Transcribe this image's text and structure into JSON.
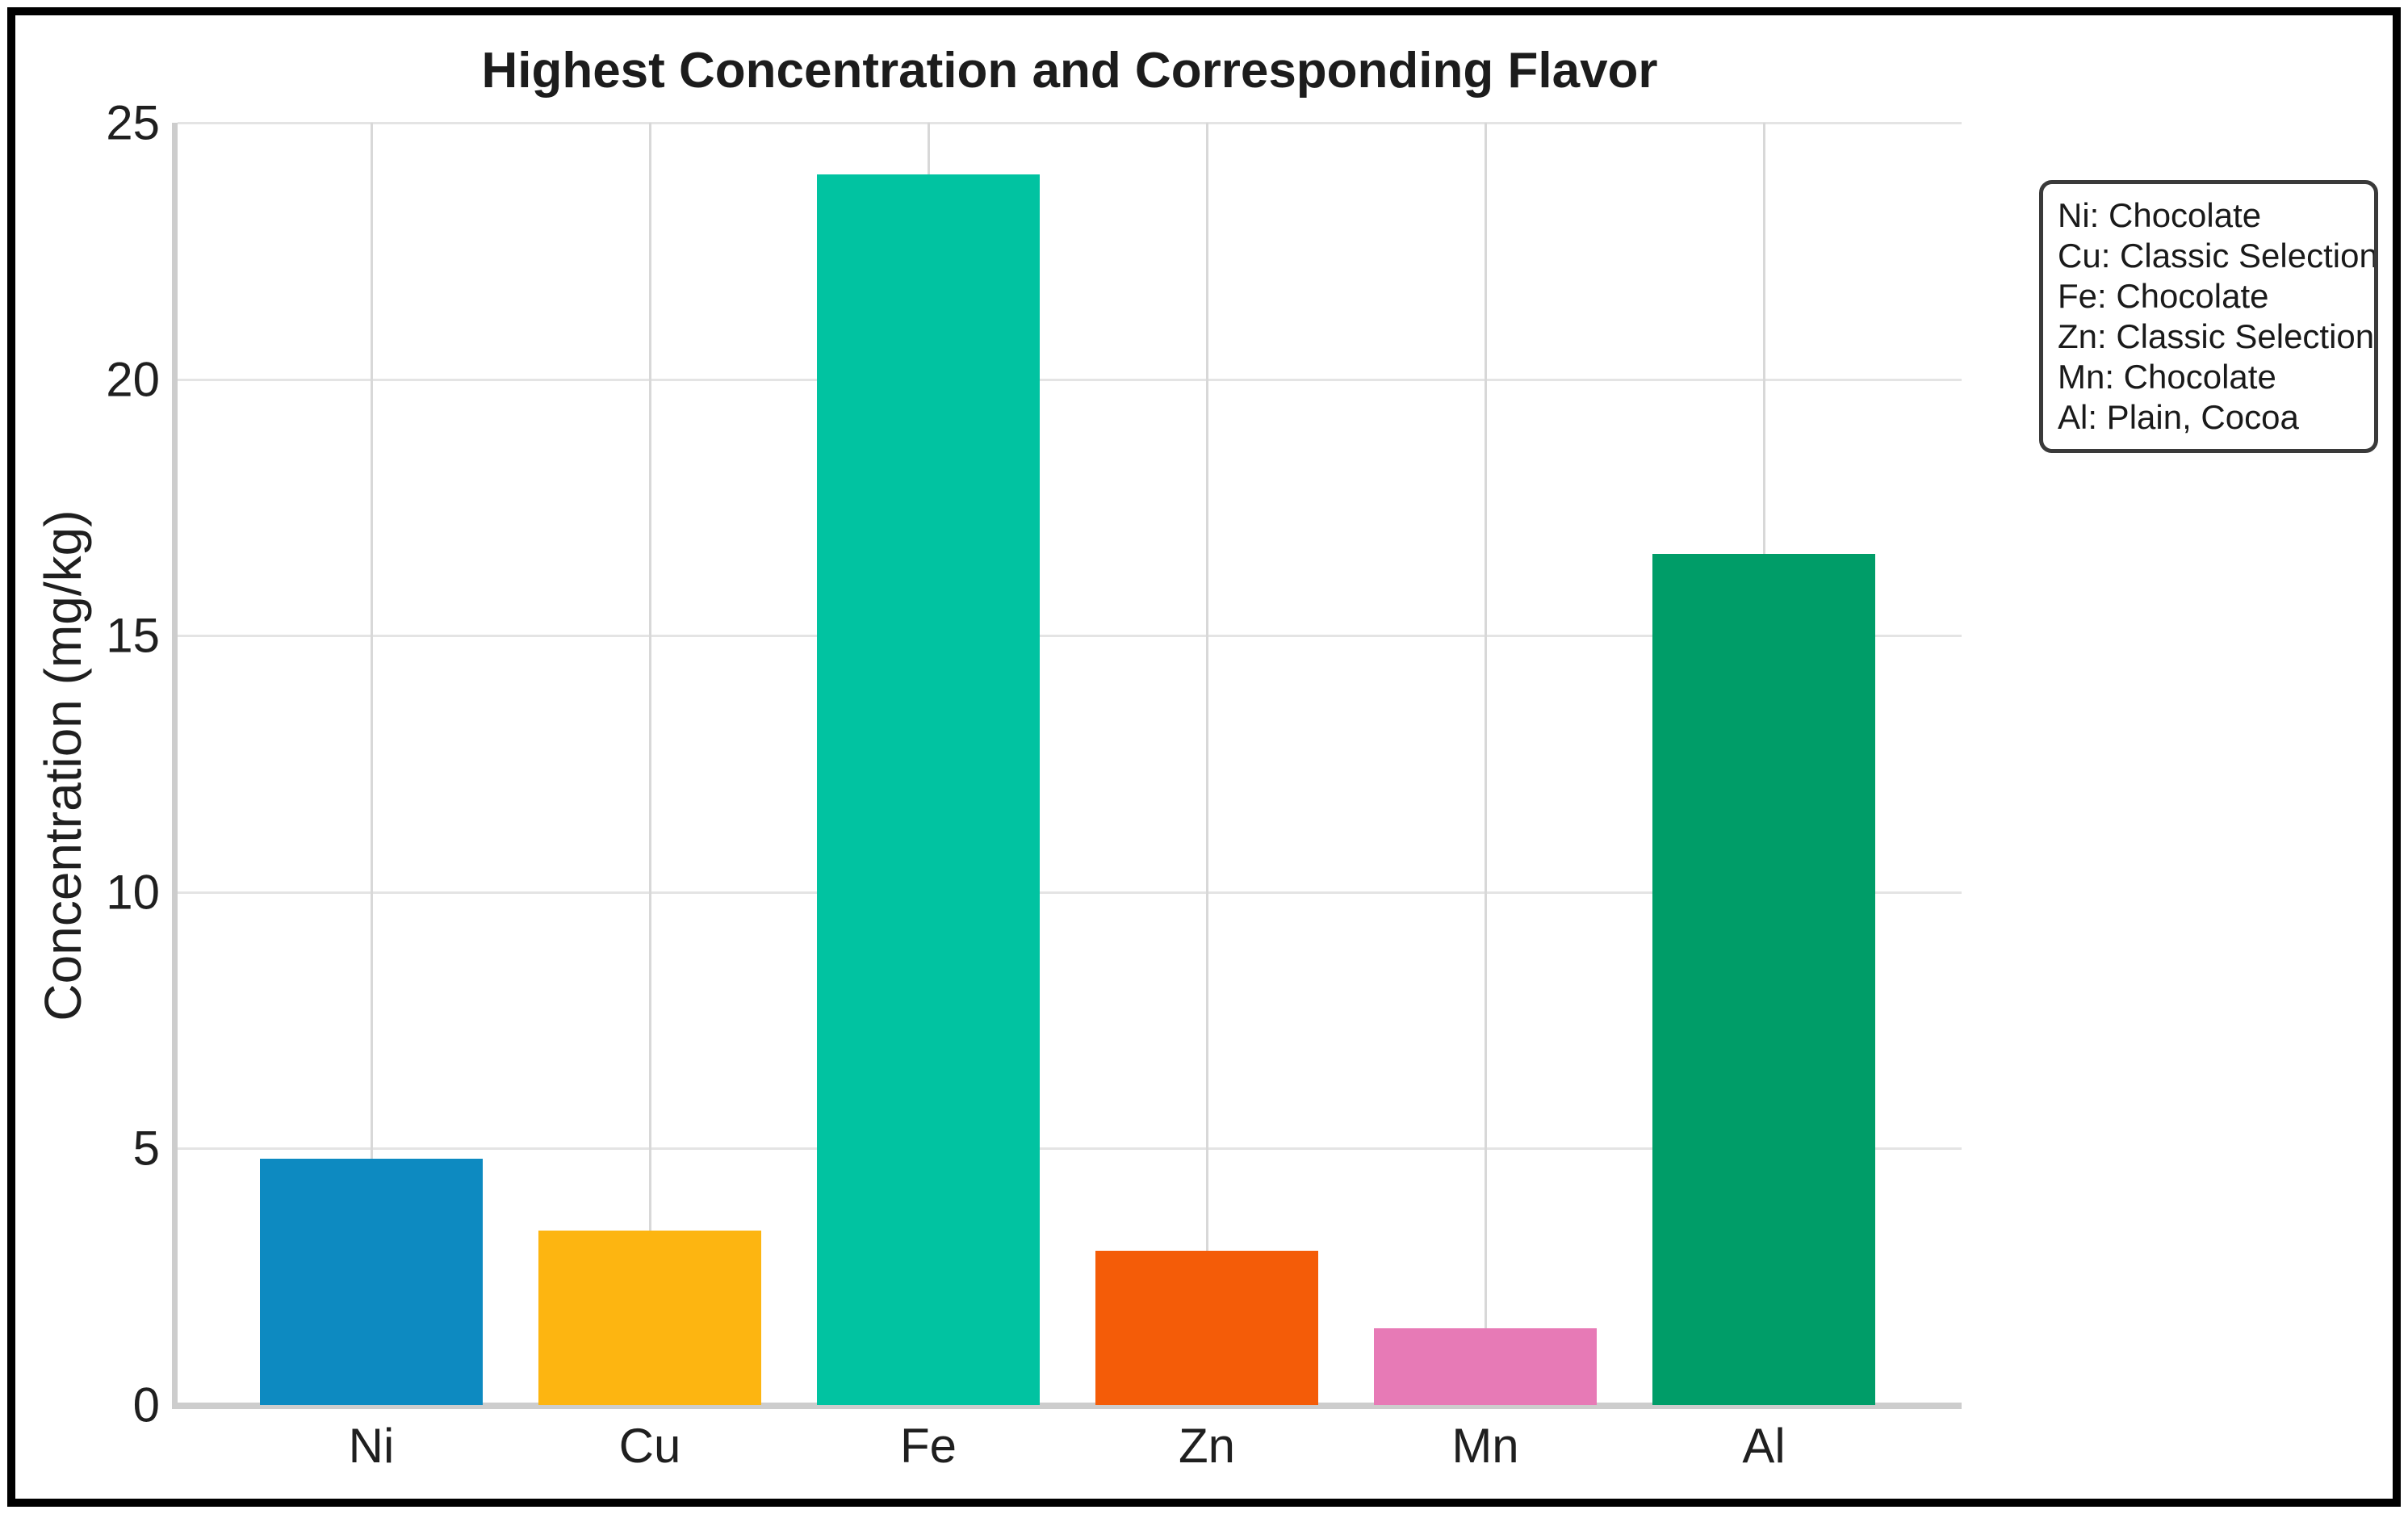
{
  "chart_data": {
    "type": "bar",
    "title": "Highest Concentration and Corresponding Flavor",
    "xlabel": "",
    "ylabel": "Concentration (mg/kg)",
    "categories": [
      "Ni",
      "Cu",
      "Fe",
      "Zn",
      "Mn",
      "Al"
    ],
    "values": [
      4.8,
      3.4,
      24.0,
      3.0,
      1.5,
      16.6
    ],
    "bar_colors": [
      "#0d8ac1",
      "#fdb511",
      "#01c3a1",
      "#f45c08",
      "#e77ab6",
      "#009d68"
    ],
    "ylim": [
      0,
      25
    ],
    "yticks": [
      0,
      5,
      10,
      15,
      20,
      25
    ],
    "grid": "both",
    "legend": {
      "position": "upper right",
      "items": [
        "Ni: Chocolate",
        "Cu: Classic Selection",
        "Fe: Chocolate",
        "Zn: Classic Selection",
        "Mn: Chocolate",
        "Al: Plain, Cocoa"
      ]
    }
  },
  "style_colors": {
    "h_grid": "#e4e4e4",
    "v_grid": "#d8d8d8",
    "spine": "#cdcdcd",
    "frame": "#000000",
    "text": "#1f1f1f"
  }
}
